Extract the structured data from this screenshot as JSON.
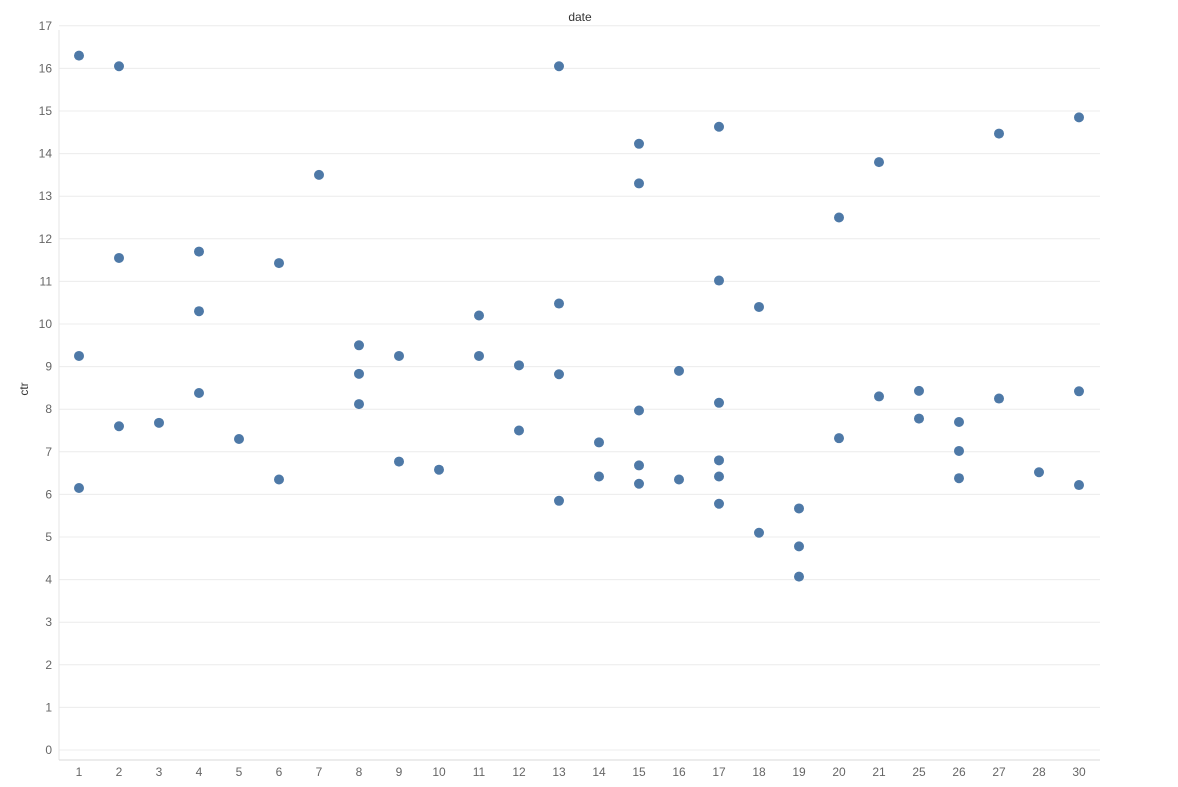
{
  "chart_data": {
    "type": "scatter",
    "title": "date",
    "xlabel": "",
    "ylabel": "ctr",
    "categories": [
      "1",
      "2",
      "3",
      "4",
      "5",
      "6",
      "7",
      "8",
      "9",
      "10",
      "11",
      "12",
      "13",
      "14",
      "15",
      "16",
      "17",
      "18",
      "19",
      "20",
      "21",
      "25",
      "26",
      "27",
      "28",
      "30"
    ],
    "ylim": [
      0,
      17
    ],
    "yticks": [
      "0",
      "1",
      "2",
      "3",
      "4",
      "5",
      "6",
      "7",
      "8",
      "9",
      "10",
      "11",
      "12",
      "13",
      "14",
      "15",
      "16",
      "17"
    ],
    "grid": "horizontal",
    "point_color": "#4e79a7",
    "points": [
      {
        "x": "1",
        "y": 16.3
      },
      {
        "x": "1",
        "y": 9.25
      },
      {
        "x": "1",
        "y": 6.15
      },
      {
        "x": "2",
        "y": 16.05
      },
      {
        "x": "2",
        "y": 11.55
      },
      {
        "x": "2",
        "y": 7.6
      },
      {
        "x": "3",
        "y": 7.68
      },
      {
        "x": "4",
        "y": 11.7
      },
      {
        "x": "4",
        "y": 10.3
      },
      {
        "x": "4",
        "y": 8.38
      },
      {
        "x": "5",
        "y": 7.3
      },
      {
        "x": "6",
        "y": 11.43
      },
      {
        "x": "6",
        "y": 6.35
      },
      {
        "x": "7",
        "y": 13.5
      },
      {
        "x": "8",
        "y": 9.5
      },
      {
        "x": "8",
        "y": 8.83
      },
      {
        "x": "8",
        "y": 8.12
      },
      {
        "x": "9",
        "y": 9.25
      },
      {
        "x": "9",
        "y": 6.77
      },
      {
        "x": "10",
        "y": 6.58
      },
      {
        "x": "11",
        "y": 10.2
      },
      {
        "x": "11",
        "y": 9.25
      },
      {
        "x": "12",
        "y": 9.03
      },
      {
        "x": "12",
        "y": 7.5
      },
      {
        "x": "13",
        "y": 16.05
      },
      {
        "x": "13",
        "y": 10.48
      },
      {
        "x": "13",
        "y": 8.82
      },
      {
        "x": "13",
        "y": 5.85
      },
      {
        "x": "14",
        "y": 7.22
      },
      {
        "x": "14",
        "y": 6.42
      },
      {
        "x": "15",
        "y": 14.23
      },
      {
        "x": "15",
        "y": 13.3
      },
      {
        "x": "15",
        "y": 7.97
      },
      {
        "x": "15",
        "y": 6.68
      },
      {
        "x": "15",
        "y": 6.25
      },
      {
        "x": "16",
        "y": 8.9
      },
      {
        "x": "16",
        "y": 6.35
      },
      {
        "x": "17",
        "y": 14.63
      },
      {
        "x": "17",
        "y": 11.02
      },
      {
        "x": "17",
        "y": 8.15
      },
      {
        "x": "17",
        "y": 6.8
      },
      {
        "x": "17",
        "y": 6.42
      },
      {
        "x": "17",
        "y": 5.78
      },
      {
        "x": "18",
        "y": 10.4
      },
      {
        "x": "18",
        "y": 5.1
      },
      {
        "x": "19",
        "y": 5.67
      },
      {
        "x": "19",
        "y": 4.78
      },
      {
        "x": "19",
        "y": 4.07
      },
      {
        "x": "20",
        "y": 12.5
      },
      {
        "x": "20",
        "y": 7.32
      },
      {
        "x": "21",
        "y": 13.8
      },
      {
        "x": "21",
        "y": 8.3
      },
      {
        "x": "25",
        "y": 8.43
      },
      {
        "x": "25",
        "y": 7.78
      },
      {
        "x": "26",
        "y": 7.7
      },
      {
        "x": "26",
        "y": 7.02
      },
      {
        "x": "26",
        "y": 6.38
      },
      {
        "x": "27",
        "y": 14.47
      },
      {
        "x": "27",
        "y": 8.25
      },
      {
        "x": "28",
        "y": 6.52
      },
      {
        "x": "30",
        "y": 14.85
      },
      {
        "x": "30",
        "y": 8.42
      },
      {
        "x": "30",
        "y": 6.22
      }
    ]
  }
}
